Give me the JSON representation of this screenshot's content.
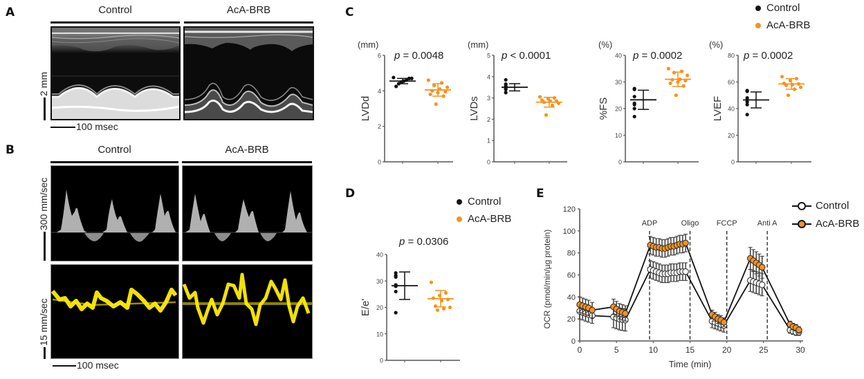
{
  "colors": {
    "control": "#111111",
    "aca_brb": "#f7931e",
    "yellow_trace": "#ffee00"
  },
  "panel_a": {
    "letter": "A",
    "groups": [
      "Control",
      "AcA-BRB"
    ],
    "scale_vertical": "2 mm",
    "scale_horizontal": "100 msec"
  },
  "panel_b": {
    "letter": "B",
    "groups": [
      "Control",
      "AcA-BRB"
    ],
    "scale_top": "300 mm/sec",
    "scale_bottom": "15 mm/sec",
    "scale_horizontal": "100 msec"
  },
  "panel_c": {
    "letter": "C",
    "legend": [
      {
        "label": "Control",
        "color": "#111111"
      },
      {
        "label": "AcA-BRB",
        "color": "#f7931e"
      }
    ]
  },
  "panel_d": {
    "letter": "D",
    "legend": [
      {
        "label": "Control",
        "color": "#111111"
      },
      {
        "label": "AcA-BRB",
        "color": "#f7931e"
      }
    ]
  },
  "panel_e": {
    "letter": "E",
    "legend": [
      {
        "label": "Control",
        "marker": "open-circle"
      },
      {
        "label": "AcA-BRB",
        "marker": "orange-circle"
      }
    ]
  },
  "chart_data": [
    {
      "type": "scatter",
      "id": "lvdd",
      "ylabel": "LVDd",
      "unit": "(mm)",
      "pvalue": "p = 0.0048",
      "ylim": [
        0,
        6
      ],
      "yticks": [
        "0",
        "2",
        "4",
        "6"
      ],
      "categories": [
        "Control",
        "AcA-BRB"
      ],
      "series": [
        {
          "name": "Control",
          "values": [
            4.75,
            4.7,
            4.7,
            4.6,
            4.55,
            4.5,
            4.4,
            4.25
          ],
          "mean": 4.55,
          "sd": 0.15
        },
        {
          "name": "AcA-BRB",
          "values": [
            4.6,
            4.45,
            4.3,
            4.2,
            4.1,
            4.0,
            3.95,
            3.9,
            3.8,
            3.7,
            3.25
          ],
          "mean": 4.05,
          "sd": 0.35
        }
      ]
    },
    {
      "type": "scatter",
      "id": "lvds",
      "ylabel": "LVDs",
      "unit": "(mm)",
      "pvalue": "p < 0.0001",
      "ylim": [
        0,
        5
      ],
      "yticks": [
        "0",
        "1",
        "2",
        "3",
        "4",
        "5"
      ],
      "categories": [
        "Control",
        "AcA-BRB"
      ],
      "series": [
        {
          "name": "Control",
          "values": [
            3.85,
            3.65,
            3.55,
            3.5,
            3.45,
            3.4,
            3.25
          ],
          "mean": 3.5,
          "sd": 0.17
        },
        {
          "name": "AcA-BRB",
          "values": [
            3.05,
            3.0,
            2.95,
            2.9,
            2.85,
            2.85,
            2.8,
            2.75,
            2.65,
            2.2
          ],
          "mean": 2.8,
          "sd": 0.23
        }
      ]
    },
    {
      "type": "scatter",
      "id": "fs",
      "ylabel": "%FS",
      "unit": "(%)",
      "pvalue": "p = 0.0002",
      "ylim": [
        0,
        40
      ],
      "yticks": [
        "0",
        "10",
        "20",
        "30",
        "40"
      ],
      "categories": [
        "Control",
        "AcA-BRB"
      ],
      "series": [
        {
          "name": "Control",
          "values": [
            27.5,
            27.2,
            24.5,
            22.0,
            21.5,
            20.0,
            17.0
          ],
          "mean": 23.3,
          "sd": 3.6
        },
        {
          "name": "AcA-BRB",
          "values": [
            35.0,
            34.0,
            33.5,
            32.5,
            31.0,
            30.8,
            30.5,
            30.0,
            29.5,
            28.5,
            25.0
          ],
          "mean": 31.0,
          "sd": 2.7
        }
      ]
    },
    {
      "type": "scatter",
      "id": "lvef",
      "ylabel": "LVEF",
      "unit": "(%)",
      "pvalue": "p = 0.0002",
      "ylim": [
        0,
        80
      ],
      "yticks": [
        "0",
        "20",
        "40",
        "60",
        "80"
      ],
      "categories": [
        "Control",
        "AcA-BRB"
      ],
      "series": [
        {
          "name": "Control",
          "values": [
            53.5,
            53.0,
            48.0,
            46.5,
            45.0,
            43.0,
            35.5
          ],
          "mean": 46.5,
          "sd": 6.0
        },
        {
          "name": "AcA-BRB",
          "values": [
            64.0,
            62.5,
            61.0,
            59.0,
            58.5,
            58.0,
            57.5,
            56.0,
            54.5,
            50.0
          ],
          "mean": 58.5,
          "sd": 4.0
        }
      ]
    },
    {
      "type": "scatter",
      "id": "ee",
      "ylabel": "E/e'",
      "unit": "",
      "pvalue": "p = 0.0306",
      "ylim": [
        0,
        40
      ],
      "yticks": [
        "0",
        "10",
        "20",
        "30",
        "40"
      ],
      "categories": [
        "Control",
        "AcA-BRB"
      ],
      "series": [
        {
          "name": "Control",
          "values": [
            33.0,
            31.5,
            32.0,
            28.0,
            28.5,
            26.0,
            18.0
          ],
          "mean": 28.2,
          "sd": 5.2
        },
        {
          "name": "AcA-BRB",
          "values": [
            29.5,
            25.5,
            24.5,
            23.5,
            23.0,
            22.5,
            20.5,
            20.0,
            19.5,
            19.0
          ],
          "mean": 23.3,
          "sd": 3.1
        }
      ]
    },
    {
      "type": "line",
      "id": "ocr",
      "title": "",
      "xlabel": "Time (min)",
      "ylabel": "OCR (pmol/min/µg protein)",
      "xlim": [
        0,
        30
      ],
      "ylim": [
        0,
        120
      ],
      "xticks": [
        "0",
        "5",
        "10",
        "15",
        "20",
        "25",
        "30"
      ],
      "yticks": [
        "0",
        "20",
        "40",
        "60",
        "80",
        "100",
        "120"
      ],
      "injections": [
        {
          "label": "ADP",
          "x": 9.5
        },
        {
          "label": "Oligo",
          "x": 15.0
        },
        {
          "label": "FCCP",
          "x": 20.0
        },
        {
          "label": "Anti A",
          "x": 25.5
        }
      ],
      "series": [
        {
          "name": "Control",
          "segments": [
            {
              "x": [
                0,
                0.4,
                0.8,
                1.2,
                1.7
              ],
              "y": [
                27,
                26,
                25,
                24,
                23
              ],
              "err": 7
            },
            {
              "x": [
                4.6,
                5.0,
                5.4,
                5.8,
                6.2
              ],
              "y": [
                22,
                21,
                20,
                19.5,
                19
              ],
              "err": 10
            },
            {
              "x": [
                9.6,
                10.0,
                10.4,
                10.8,
                11.2,
                11.6,
                12.0,
                12.4,
                12.8,
                13.2,
                13.6,
                14.0,
                14.4
              ],
              "y": [
                65,
                64,
                63,
                62,
                61,
                61,
                61,
                62,
                62,
                62,
                63,
                63,
                63
              ],
              "err": 8
            },
            {
              "x": [
                18.0,
                18.4,
                18.8,
                19.2,
                19.6
              ],
              "y": [
                18,
                17,
                16,
                15,
                14
              ],
              "err": 6
            },
            {
              "x": [
                23.2,
                23.6,
                24.0,
                24.4,
                24.8
              ],
              "y": [
                55,
                54,
                53,
                52,
                51
              ],
              "err": 10
            },
            {
              "x": [
                28.6,
                29.0,
                29.4,
                29.8
              ],
              "y": [
                10,
                9,
                8,
                8
              ],
              "err": 3
            }
          ]
        },
        {
          "name": "AcA-BRB",
          "segments": [
            {
              "x": [
                0,
                0.4,
                0.8,
                1.2,
                1.7
              ],
              "y": [
                33,
                32,
                31,
                30,
                28
              ],
              "err": 7
            },
            {
              "x": [
                4.6,
                5.0,
                5.4,
                5.8,
                6.2
              ],
              "y": [
                31,
                29,
                27,
                26,
                25
              ],
              "err": 7
            },
            {
              "x": [
                9.6,
                10.0,
                10.4,
                10.8,
                11.2,
                11.6,
                12.0,
                12.4,
                12.8,
                13.2,
                13.6,
                14.0,
                14.4
              ],
              "y": [
                87,
                86,
                85,
                85,
                84,
                84,
                85,
                86,
                86,
                87,
                88,
                88,
                89
              ],
              "err": 8
            },
            {
              "x": [
                18.0,
                18.4,
                18.8,
                19.2,
                19.6
              ],
              "y": [
                24,
                22,
                20,
                19,
                17
              ],
              "err": 4
            },
            {
              "x": [
                23.2,
                23.6,
                24.0,
                24.4,
                24.8
              ],
              "y": [
                75,
                73,
                71,
                69,
                67
              ],
              "err": 10
            },
            {
              "x": [
                28.6,
                29.0,
                29.4,
                29.8
              ],
              "y": [
                15,
                13,
                12,
                10
              ],
              "err": 3
            }
          ]
        }
      ],
      "legend_position": "top-right"
    }
  ]
}
